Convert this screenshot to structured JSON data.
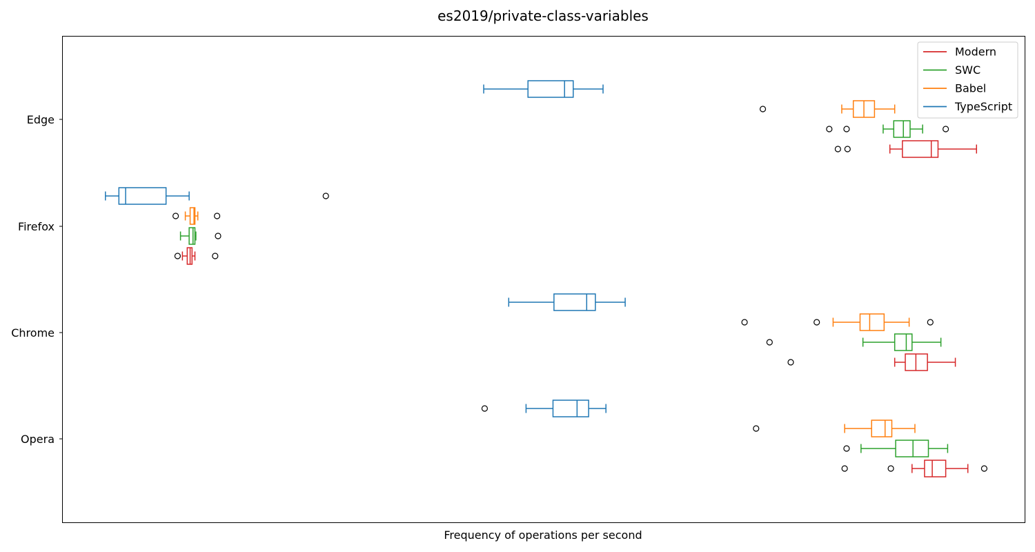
{
  "chart_data": {
    "type": "boxplot",
    "orientation": "horizontal",
    "title": "es2019/private-class-variables",
    "xlabel": "Frequency of operations per second",
    "ylabel": "",
    "x_ticks_shown": false,
    "grid": false,
    "legend_position": "top-right",
    "xlim": [
      0,
      1000
    ],
    "categories": [
      "Edge",
      "Firefox",
      "Chrome",
      "Opera"
    ],
    "series": [
      {
        "name": "Modern",
        "color": "#d62728",
        "boxes": [
          {
            "category": "Edge",
            "whislo": 860,
            "q1": 873,
            "med": 903,
            "q3": 910,
            "whishi": 950,
            "fliers": [
              806,
              816
            ]
          },
          {
            "category": "Firefox",
            "whislo": 125,
            "q1": 130,
            "med": 133,
            "q3": 135,
            "whishi": 138,
            "fliers": [
              120,
              159
            ]
          },
          {
            "category": "Chrome",
            "whislo": 865,
            "q1": 876,
            "med": 887,
            "q3": 899,
            "whishi": 928,
            "fliers": [
              757
            ]
          },
          {
            "category": "Opera",
            "whislo": 883,
            "q1": 896,
            "med": 904,
            "q3": 918,
            "whishi": 941,
            "fliers": [
              813,
              861,
              958
            ]
          }
        ]
      },
      {
        "name": "SWC",
        "color": "#2ca02c",
        "boxes": [
          {
            "category": "Edge",
            "whislo": 853,
            "q1": 864,
            "med": 874,
            "q3": 881,
            "whishi": 894,
            "fliers": [
              797,
              815,
              918
            ]
          },
          {
            "category": "Firefox",
            "whislo": 123,
            "q1": 132,
            "med": 136,
            "q3": 138,
            "whishi": 139,
            "fliers": [
              162
            ]
          },
          {
            "category": "Chrome",
            "whislo": 832,
            "q1": 865,
            "med": 877,
            "q3": 883,
            "whishi": 913,
            "fliers": [
              735
            ]
          },
          {
            "category": "Opera",
            "whislo": 830,
            "q1": 866,
            "med": 884,
            "q3": 900,
            "whishi": 920,
            "fliers": [
              815
            ]
          }
        ]
      },
      {
        "name": "Babel",
        "color": "#ff7f0e",
        "boxes": [
          {
            "category": "Edge",
            "whislo": 810,
            "q1": 822,
            "med": 833,
            "q3": 844,
            "whishi": 865,
            "fliers": [
              728
            ]
          },
          {
            "category": "Firefox",
            "whislo": 128,
            "q1": 133,
            "med": 137,
            "q3": 138,
            "whishi": 141,
            "fliers": [
              118,
              161
            ]
          },
          {
            "category": "Chrome",
            "whislo": 801,
            "q1": 829,
            "med": 839,
            "q3": 854,
            "whishi": 880,
            "fliers": [
              709,
              784,
              902
            ]
          },
          {
            "category": "Opera",
            "whislo": 813,
            "q1": 841,
            "med": 855,
            "q3": 862,
            "whishi": 886,
            "fliers": [
              721
            ]
          }
        ]
      },
      {
        "name": "TypeScript",
        "color": "#1f77b4",
        "boxes": [
          {
            "category": "Edge",
            "whislo": 438,
            "q1": 484,
            "med": 522,
            "q3": 531,
            "whishi": 562,
            "fliers": []
          },
          {
            "category": "Firefox",
            "whislo": 45,
            "q1": 59,
            "med": 66,
            "q3": 108,
            "whishi": 132,
            "fliers": [
              274
            ]
          },
          {
            "category": "Chrome",
            "whislo": 464,
            "q1": 511,
            "med": 545,
            "q3": 554,
            "whishi": 585,
            "fliers": []
          },
          {
            "category": "Opera",
            "whislo": 482,
            "q1": 510,
            "med": 535,
            "q3": 547,
            "whishi": 565,
            "fliers": [
              439
            ]
          }
        ]
      }
    ],
    "legend": [
      "Modern",
      "SWC",
      "Babel",
      "TypeScript"
    ]
  }
}
